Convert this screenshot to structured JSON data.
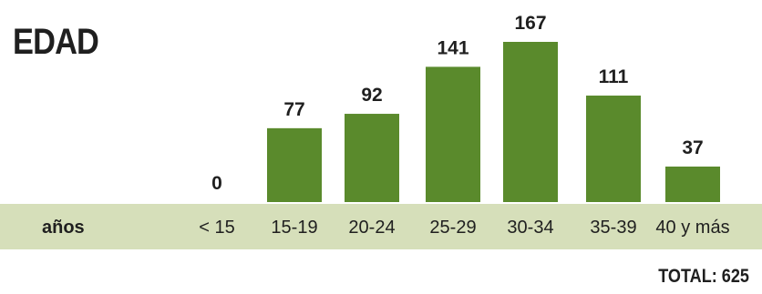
{
  "chart_data": {
    "type": "bar",
    "title": "EDAD",
    "category_axis_label": "años",
    "categories": [
      "< 15",
      "15-19",
      "20-24",
      "25-29",
      "30-34",
      "35-39",
      "40 y más"
    ],
    "values": [
      0,
      77,
      92,
      141,
      167,
      111,
      37
    ],
    "total_label": "TOTAL: 625",
    "colors": {
      "bar": "#5a8a2c",
      "band": "#d6dfba",
      "text": "#1f1f1f"
    }
  }
}
